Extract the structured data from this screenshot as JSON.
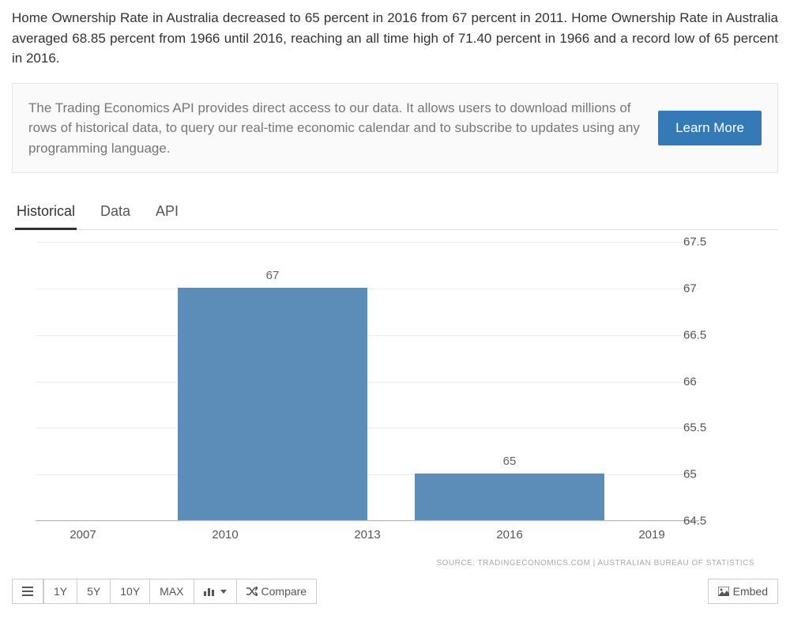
{
  "intro": "Home Ownership Rate in Australia decreased to 65 percent in 2016 from 67 percent in 2011. Home Ownership Rate in Australia averaged 68.85 percent from 1966 until 2016, reaching an all time high of 71.40 percent in 1966 and a record low of 65 percent in 2016.",
  "api_box": {
    "text": "The Trading Economics API provides direct access to our data. It allows users to download millions of rows of historical data, to query our real-time economic calendar and to subscribe to updates using any programming language.",
    "button": "Learn More"
  },
  "tabs": [
    {
      "label": "Historical",
      "active": true
    },
    {
      "label": "Data",
      "active": false
    },
    {
      "label": "API",
      "active": false
    }
  ],
  "chart": {
    "type": "bar",
    "bar_color": "#5b8db8",
    "grid_color": "#eeeeee",
    "background_color": "#ffffff",
    "y_min": 64.5,
    "y_max": 67.5,
    "y_ticks": [
      64.5,
      65,
      65.5,
      66,
      66.5,
      67,
      67.5
    ],
    "x_ticks": [
      2007,
      2010,
      2013,
      2016,
      2019
    ],
    "x_min": 2006,
    "x_max": 2020,
    "bars": [
      {
        "x_start": 2009,
        "x_end": 2013,
        "value": 67,
        "label": "67"
      },
      {
        "x_start": 2014,
        "x_end": 2018,
        "value": 65,
        "label": "65"
      }
    ]
  },
  "source": "SOURCE: TRADINGECONOMICS.COM | AUSTRALIAN BUREAU OF STATISTICS",
  "toolbar": {
    "ranges": [
      "1Y",
      "5Y",
      "10Y",
      "MAX"
    ],
    "compare": "Compare",
    "embed": "Embed"
  }
}
